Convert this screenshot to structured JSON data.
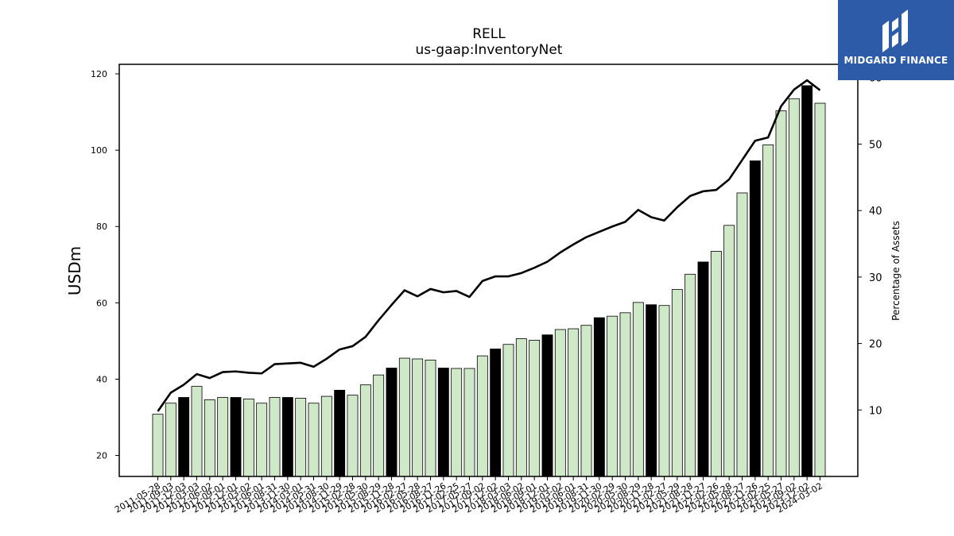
{
  "brand": {
    "name": "MIDGARD FINANCE",
    "bg_color": "#2d5ba8"
  },
  "chart_data": {
    "type": "bar",
    "title": "RELL",
    "subtitle": "us-gaap:InventoryNet",
    "ylabel": "USDm",
    "ylabel_right": "Percentage of Assets",
    "ylim": [
      14.5,
      122.5
    ],
    "ylim_right": [
      0,
      62
    ],
    "yticks": [
      20,
      40,
      60,
      80,
      100,
      120
    ],
    "yticks_right": [
      10,
      20,
      30,
      40,
      50,
      60
    ],
    "bar_colors": {
      "light": "#cfe8c8",
      "dark": "#000000"
    },
    "tick_labels": [
      "2011-05-28",
      "2011-09-03",
      "2011-12-03",
      "2012-03-03",
      "2012-06-02",
      "2012-09-01",
      "2012-12-01",
      "2013-03-02",
      "2013-06-01",
      "2013-08-31",
      "2013-11-30",
      "2014-03-01",
      "2014-05-31",
      "2014-08-30",
      "2014-11-29",
      "2015-02-28",
      "2015-05-30",
      "2015-08-29",
      "2015-11-28",
      "2016-02-27",
      "2016-05-28",
      "2016-08-27",
      "2016-11-26",
      "2017-02-25",
      "2017-05-27",
      "2017-09-02",
      "2017-12-02",
      "2018-03-03",
      "2018-06-02",
      "2018-09-01",
      "2018-12-01",
      "2019-03-02",
      "2019-06-01",
      "2019-08-31",
      "2019-11-30",
      "2020-02-29",
      "2020-05-30",
      "2020-08-29",
      "2020-11-28",
      "2021-02-27",
      "2021-05-29",
      "2021-08-28",
      "2021-11-27",
      "2022-02-26",
      "2022-05-28",
      "2022-08-27",
      "2022-11-26",
      "2023-02-25",
      "2023-05-27",
      "2023-09-02",
      "2023-12-02",
      "2024-03-02"
    ],
    "bars": [
      {
        "value": 30.8,
        "dark": false
      },
      {
        "value": 33.7,
        "dark": false
      },
      {
        "value": 35.2,
        "dark": true
      },
      {
        "value": 38.1,
        "dark": false
      },
      {
        "value": 34.6,
        "dark": false
      },
      {
        "value": 35.2,
        "dark": false
      },
      {
        "value": 35.2,
        "dark": true
      },
      {
        "value": 34.8,
        "dark": false
      },
      {
        "value": 33.7,
        "dark": false
      },
      {
        "value": 35.2,
        "dark": false
      },
      {
        "value": 35.2,
        "dark": true
      },
      {
        "value": 35.0,
        "dark": false
      },
      {
        "value": 33.7,
        "dark": false
      },
      {
        "value": 35.5,
        "dark": false
      },
      {
        "value": 37.1,
        "dark": true
      },
      {
        "value": 35.8,
        "dark": false
      },
      {
        "value": 38.5,
        "dark": false
      },
      {
        "value": 41.1,
        "dark": false
      },
      {
        "value": 42.9,
        "dark": true
      },
      {
        "value": 45.5,
        "dark": false
      },
      {
        "value": 45.3,
        "dark": false
      },
      {
        "value": 45.0,
        "dark": false
      },
      {
        "value": 42.9,
        "dark": true
      },
      {
        "value": 42.8,
        "dark": false
      },
      {
        "value": 42.8,
        "dark": false
      },
      {
        "value": 46.1,
        "dark": false
      },
      {
        "value": 47.9,
        "dark": true
      },
      {
        "value": 49.1,
        "dark": false
      },
      {
        "value": 50.6,
        "dark": false
      },
      {
        "value": 50.2,
        "dark": false
      },
      {
        "value": 51.6,
        "dark": true
      },
      {
        "value": 53.0,
        "dark": false
      },
      {
        "value": 53.2,
        "dark": false
      },
      {
        "value": 54.1,
        "dark": false
      },
      {
        "value": 56.1,
        "dark": true
      },
      {
        "value": 56.5,
        "dark": false
      },
      {
        "value": 57.4,
        "dark": false
      },
      {
        "value": 60.1,
        "dark": false
      },
      {
        "value": 59.5,
        "dark": true
      },
      {
        "value": 59.3,
        "dark": false
      },
      {
        "value": 63.5,
        "dark": false
      },
      {
        "value": 67.5,
        "dark": false
      },
      {
        "value": 70.7,
        "dark": true
      },
      {
        "value": 73.5,
        "dark": false
      },
      {
        "value": 80.3,
        "dark": false
      },
      {
        "value": 88.8,
        "dark": false
      },
      {
        "value": 97.2,
        "dark": true
      },
      {
        "value": 101.4,
        "dark": false
      },
      {
        "value": 110.3,
        "dark": false
      },
      {
        "value": 113.5,
        "dark": false
      },
      {
        "value": 116.9,
        "dark": true
      },
      {
        "value": 112.3,
        "dark": false
      }
    ],
    "pct_of_assets": [
      9.8,
      12.6,
      13.8,
      15.4,
      14.8,
      15.7,
      15.8,
      15.6,
      15.5,
      16.9,
      17.0,
      17.1,
      16.5,
      17.7,
      19.1,
      19.6,
      21.0,
      23.5,
      25.8,
      28.0,
      27.1,
      28.2,
      27.7,
      27.9,
      27.0,
      29.4,
      30.1,
      30.1,
      30.6,
      31.4,
      32.3,
      33.7,
      34.9,
      36.0,
      36.8,
      37.6,
      38.3,
      40.1,
      39.0,
      38.5,
      40.5,
      42.2,
      42.9,
      43.1,
      44.7,
      47.6,
      50.5,
      51.0,
      55.7,
      58.2,
      59.6,
      58.1
    ],
    "grid": false,
    "legend": "none"
  }
}
